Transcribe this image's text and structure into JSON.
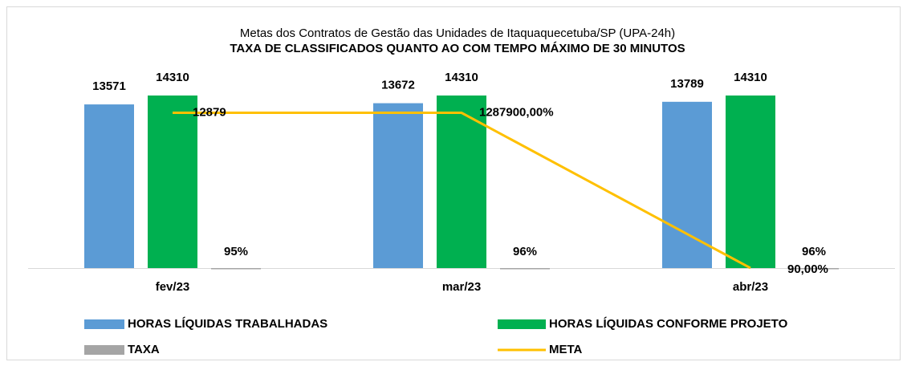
{
  "chart_data": {
    "type": "bar",
    "title": "Metas dos Contratos de Gestão das Unidades de Itaquaquecetuba/SP (UPA-24h)",
    "subtitle": "TAXA DE CLASSIFICADOS QUANTO AO COM TEMPO MÁXIMO DE 30 MINUTOS",
    "categories": [
      "fev/23",
      "mar/23",
      "abr/23"
    ],
    "ylim": [
      0,
      16000
    ],
    "series": [
      {
        "name": "HORAS LÍQUIDAS TRABALHADAS",
        "color": "#5b9bd5",
        "values": [
          13571,
          13672,
          13789
        ]
      },
      {
        "name": "HORAS LÍQUIDAS CONFORME PROJETO",
        "color": "#00b050",
        "values": [
          14310,
          14310,
          14310
        ]
      },
      {
        "name": "TAXA",
        "color": "#a5a5a5",
        "values": [
          0.95,
          0.96,
          0.96
        ],
        "value_labels": [
          "95%",
          "96%",
          "96%"
        ]
      },
      {
        "name": "META",
        "color": "#ffc000",
        "type": "line",
        "values": [
          12879,
          12879,
          0.9
        ],
        "value_labels": [
          "12879",
          "1287900,00%",
          "90,00%"
        ]
      }
    ]
  }
}
